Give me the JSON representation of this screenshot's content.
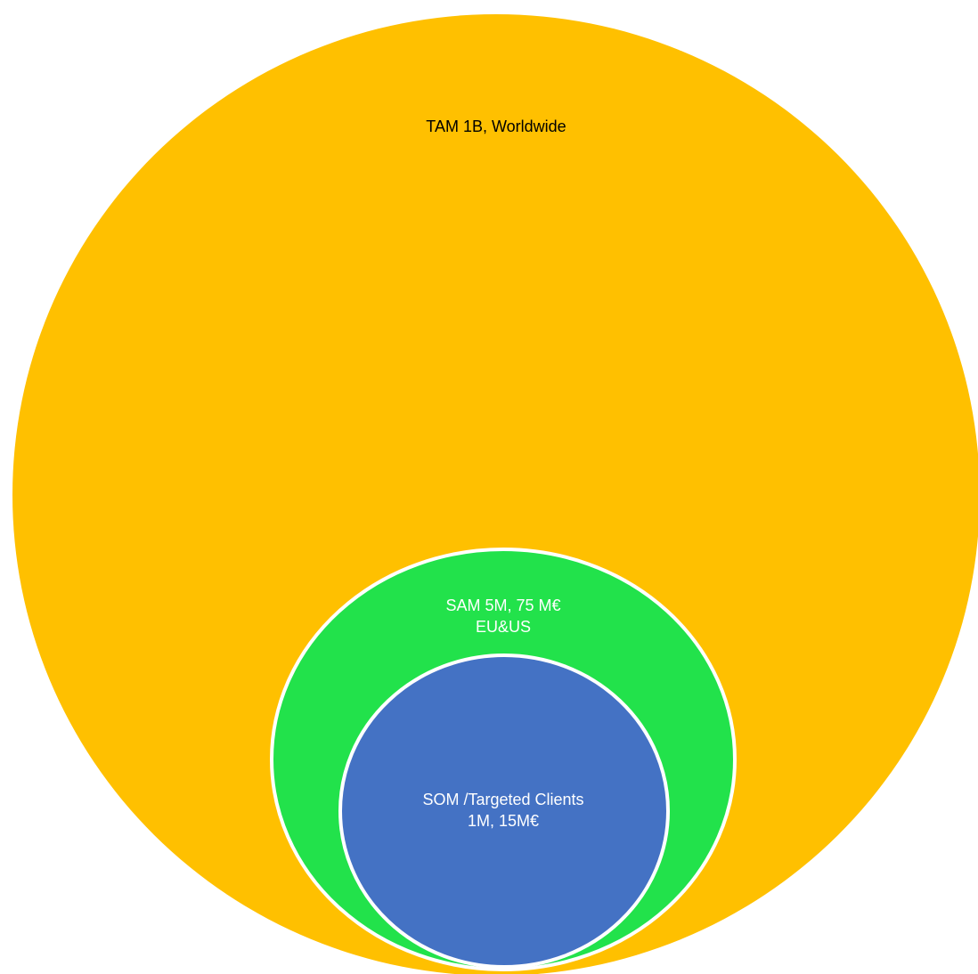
{
  "diagram": {
    "type": "nested-circles",
    "colors": {
      "tam": "#FFC000",
      "sam": "#22E24B",
      "som": "#4472C4",
      "outline": "#ffffff",
      "tam_text": "#000000",
      "inner_text": "#ffffff"
    },
    "tam": {
      "label": "TAM 1B, Worldwide"
    },
    "sam": {
      "line1": "SAM 5M, 75 M€",
      "line2": "EU&US"
    },
    "som": {
      "line1": "SOM /Targeted Clients",
      "line2": "1M, 15M€"
    }
  }
}
